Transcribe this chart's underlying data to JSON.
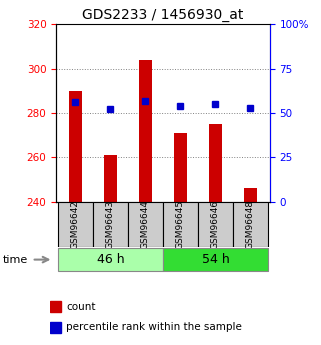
{
  "title": "GDS2233 / 1456930_at",
  "samples": [
    "GSM96642",
    "GSM96643",
    "GSM96644",
    "GSM96645",
    "GSM96646",
    "GSM96648"
  ],
  "counts": [
    290,
    261,
    304,
    271,
    275,
    246
  ],
  "percentiles": [
    56,
    52,
    57,
    54,
    55,
    53
  ],
  "baseline": 240,
  "ylim_left": [
    240,
    320
  ],
  "ylim_right": [
    0,
    100
  ],
  "yticks_left": [
    240,
    260,
    280,
    300,
    320
  ],
  "yticks_right": [
    0,
    25,
    50,
    75,
    100
  ],
  "ytick_labels_right": [
    "0",
    "25",
    "50",
    "75",
    "100%"
  ],
  "groups": [
    {
      "label": "46 h",
      "indices": [
        0,
        1,
        2
      ],
      "color": "#aaffaa"
    },
    {
      "label": "54 h",
      "indices": [
        3,
        4,
        5
      ],
      "color": "#33dd33"
    }
  ],
  "bar_color": "#cc0000",
  "dot_color": "#0000cc",
  "bar_width": 0.35,
  "title_fontsize": 10,
  "tick_fontsize": 7.5,
  "legend_fontsize": 7.5,
  "name_fontsize": 6.5,
  "group_fontsize": 9
}
